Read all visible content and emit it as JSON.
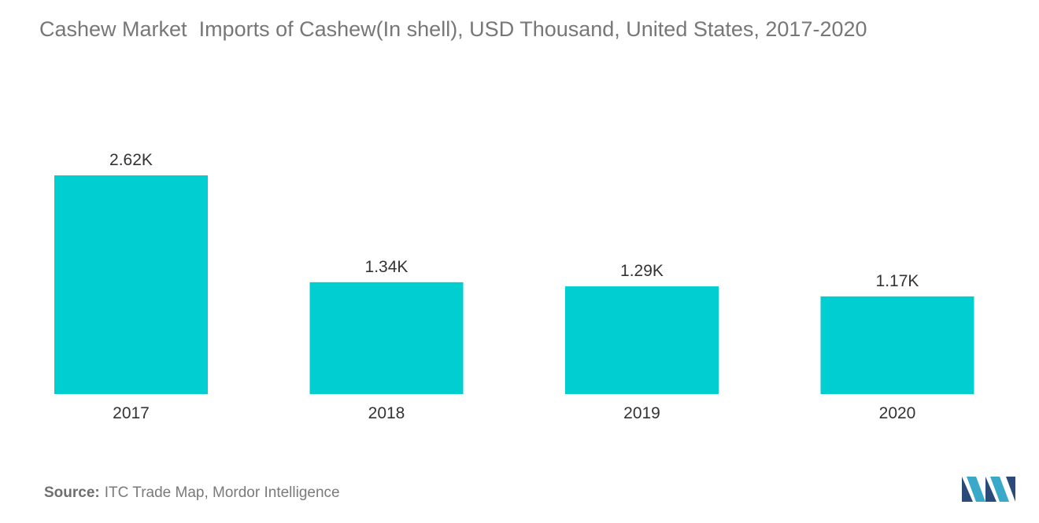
{
  "title": "Cashew Market  Imports of Cashew(In shell), USD Thousand, United States, 2017-2020",
  "source": {
    "label": "Source:",
    "text": "ITC Trade Map, Mordor Intelligence"
  },
  "colors": {
    "bar": "#00ced1",
    "label": "#333333",
    "title": "#777777"
  },
  "chart_data": {
    "type": "bar",
    "categories": [
      "2017",
      "2018",
      "2019",
      "2020"
    ],
    "values": [
      2.62,
      1.34,
      1.29,
      1.17
    ],
    "data_labels": [
      "2.62K",
      "1.34K",
      "1.29K",
      "1.17K"
    ],
    "title": "Cashew Market  Imports of Cashew(In shell), USD Thousand, United States, 2017-2020",
    "xlabel": "",
    "ylabel": "",
    "ylim": [
      0,
      2.62
    ],
    "grid": false,
    "legend": "none"
  },
  "logo": {
    "icon": "mordor-intelligence-logo"
  }
}
